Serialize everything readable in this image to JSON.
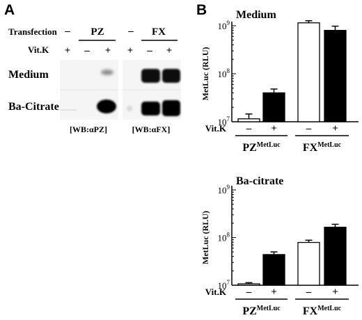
{
  "panel_a": {
    "letter": "A",
    "transfection_label": "Transfection",
    "vitk_label": "Vit.K",
    "groups": [
      {
        "name": "PZ",
        "lanes": [
          {
            "transfection": "–",
            "vitk": "+"
          },
          {
            "transfection": "",
            "vitk": "–"
          },
          {
            "transfection": "",
            "vitk": "+"
          }
        ]
      },
      {
        "name": "FX",
        "lanes": [
          {
            "transfection": "–",
            "vitk": "+"
          },
          {
            "transfection": "",
            "vitk": "–"
          },
          {
            "transfection": "",
            "vitk": "+"
          }
        ]
      }
    ],
    "row_labels": [
      "Medium",
      "Ba-Citrate"
    ],
    "blot_labels": [
      "[WB:αPZ]",
      "[WB:αFX]"
    ]
  },
  "panel_b": {
    "letter": "B",
    "vitk_label": "Vit.K",
    "ylabel": "MetLuc (RLU)",
    "tick_labels": [
      "10^7",
      "10^8",
      "10^9"
    ],
    "conditions": [
      "–",
      "+",
      "–",
      "+"
    ],
    "group_labels": [
      {
        "base": "PZ",
        "sup": "MetLuc"
      },
      {
        "base": "FX",
        "sup": "MetLuc"
      }
    ]
  },
  "chart_data": [
    {
      "type": "bar",
      "title": "Medium",
      "ylabel": "MetLuc (RLU)",
      "yscale": "log",
      "ylim": [
        10000000,
        1000000000
      ],
      "categories": [
        "PZ –",
        "PZ +",
        "FX –",
        "FX +"
      ],
      "values": [
        11500000,
        40000000,
        1150000000,
        800000000
      ],
      "errors": [
        3000000,
        8000000,
        120000000,
        180000000
      ],
      "fill": [
        "white",
        "black",
        "white",
        "black"
      ]
    },
    {
      "type": "bar",
      "title": "Ba-citrate",
      "ylabel": "MetLuc (RLU)",
      "yscale": "log",
      "ylim": [
        10000000,
        1000000000
      ],
      "categories": [
        "PZ –",
        "PZ +",
        "FX –",
        "FX +"
      ],
      "values": [
        10700000,
        44000000,
        79000000,
        165000000
      ],
      "errors": [
        600000,
        6000000,
        9000000,
        25000000
      ],
      "fill": [
        "white",
        "black",
        "white",
        "black"
      ]
    }
  ]
}
